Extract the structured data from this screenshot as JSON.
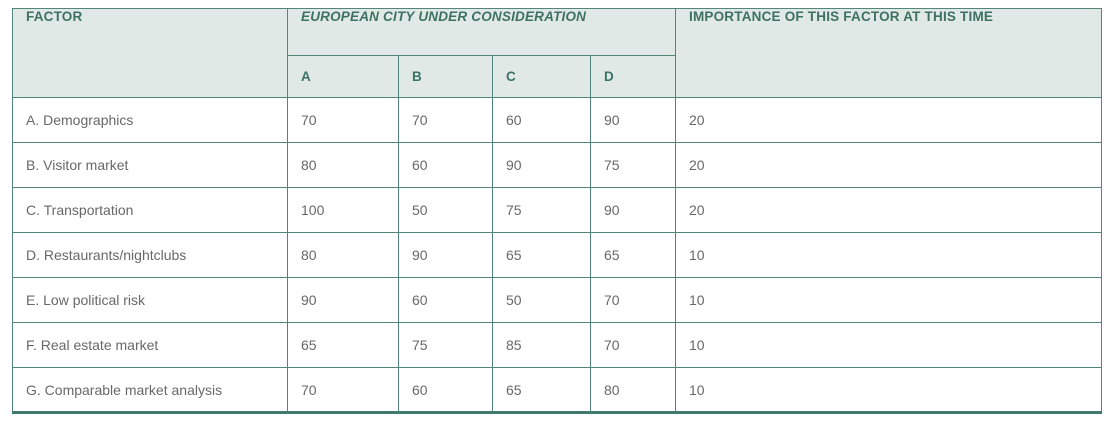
{
  "colors": {
    "header_bg": "#e0e9e5",
    "header_text": "#3e7165",
    "border": "#54857a",
    "bottom_border": "#3f7a6c",
    "body_text": "#686868",
    "page_bg": "#ffffff"
  },
  "table": {
    "headers": {
      "factor": "FACTOR",
      "city_group": "EUROPEAN CITY UNDER CONSIDERATION",
      "cities": [
        "A",
        "B",
        "C",
        "D"
      ],
      "importance": "IMPORTANCE OF THIS FACTOR AT THIS TIME"
    },
    "rows": [
      {
        "factor": "A. Demographics",
        "values": [
          "70",
          "70",
          "60",
          "90"
        ],
        "importance": "20"
      },
      {
        "factor": "B. Visitor market",
        "values": [
          "80",
          "60",
          "90",
          "75"
        ],
        "importance": "20"
      },
      {
        "factor": "C. Transportation",
        "values": [
          "100",
          "50",
          "75",
          "90"
        ],
        "importance": "20"
      },
      {
        "factor": "D. Restaurants/nightclubs",
        "values": [
          "80",
          "90",
          "65",
          "65"
        ],
        "importance": "10"
      },
      {
        "factor": "E. Low political risk",
        "values": [
          "90",
          "60",
          "50",
          "70"
        ],
        "importance": "10"
      },
      {
        "factor": "F. Real estate market",
        "values": [
          "65",
          "75",
          "85",
          "70"
        ],
        "importance": "10"
      },
      {
        "factor": "G. Comparable market analysis",
        "values": [
          "70",
          "60",
          "65",
          "80"
        ],
        "importance": "10"
      }
    ]
  },
  "chart_data": {
    "type": "table",
    "title": "",
    "columns": [
      "FACTOR",
      "A",
      "B",
      "C",
      "D",
      "IMPORTANCE OF THIS FACTOR AT THIS TIME"
    ],
    "column_group": {
      "label": "EUROPEAN CITY UNDER CONSIDERATION",
      "spans": [
        "A",
        "B",
        "C",
        "D"
      ]
    },
    "rows": [
      [
        "A. Demographics",
        70,
        70,
        60,
        90,
        20
      ],
      [
        "B. Visitor market",
        80,
        60,
        90,
        75,
        20
      ],
      [
        "C. Transportation",
        100,
        50,
        75,
        90,
        20
      ],
      [
        "D. Restaurants/nightclubs",
        80,
        90,
        65,
        65,
        10
      ],
      [
        "E. Low political risk",
        90,
        60,
        50,
        70,
        10
      ],
      [
        "F. Real estate market",
        65,
        75,
        85,
        70,
        10
      ],
      [
        "G. Comparable market analysis",
        70,
        60,
        65,
        80,
        10
      ]
    ]
  }
}
